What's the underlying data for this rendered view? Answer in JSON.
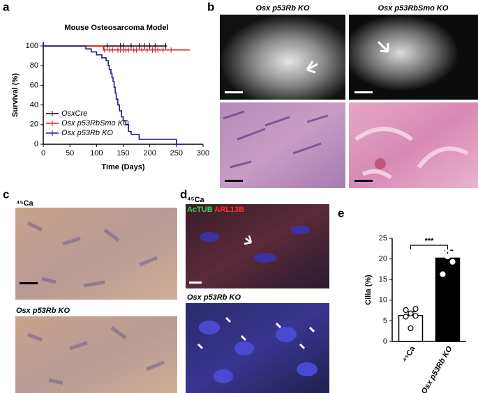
{
  "panel_labels": [
    "a",
    "b",
    "c",
    "d",
    "e"
  ],
  "figure_b": {
    "columns": [
      "Osx p53Rb KO",
      "Osx p53RbSmo KO"
    ]
  },
  "figure_c": {
    "images": [
      "⁴⁵Ca",
      "Osx p53Rb KO"
    ]
  },
  "figure_d": {
    "images": [
      "⁴⁵Ca",
      "Osx p53Rb KO"
    ],
    "stains": [
      "AcTUB",
      "ARL13B"
    ]
  },
  "chart_data": [
    {
      "type": "line",
      "title": "Mouse Osteosarcoma Model",
      "x_label": "Time (Days)",
      "y_label": "Survival (%)",
      "xlim": [
        0,
        300
      ],
      "xticks": [
        0,
        50,
        100,
        150,
        200,
        250,
        300
      ],
      "ylim": [
        0,
        100
      ],
      "yticks": [
        0,
        20,
        40,
        60,
        80,
        100
      ],
      "legend": "lower left",
      "series": [
        {
          "name": "OsxCre",
          "color": "#000000",
          "x": [
            0,
            232
          ],
          "values": [
            100,
            100
          ],
          "censored": [
            120,
            145,
            150,
            165,
            180,
            190,
            200,
            210,
            230
          ]
        },
        {
          "name": "Osx p53RbSmo KO",
          "color": "#e3191c",
          "x": [
            0,
            113,
            113,
            275
          ],
          "values": [
            100,
            100,
            96,
            96
          ],
          "censored": [
            115,
            125,
            130,
            140,
            145,
            150,
            155,
            160,
            170,
            175,
            185,
            195,
            205,
            210,
            215,
            225,
            240
          ]
        },
        {
          "name": "Osx p53Rb KO",
          "color": "#1b1b8a",
          "x": [
            0,
            80,
            80,
            90,
            90,
            100,
            100,
            110,
            110,
            118,
            118,
            122,
            122,
            124,
            124,
            127,
            127,
            129,
            129,
            131,
            131,
            133,
            133,
            135,
            135,
            137,
            137,
            140,
            140,
            143,
            143,
            147,
            147,
            150,
            150,
            155,
            155,
            160,
            160,
            165,
            165,
            180,
            180,
            250,
            250,
            265
          ],
          "values": [
            100,
            100,
            97,
            97,
            94,
            94,
            91,
            91,
            88,
            88,
            85,
            85,
            80,
            80,
            76,
            76,
            72,
            72,
            68,
            68,
            64,
            64,
            58,
            58,
            52,
            52,
            46,
            46,
            40,
            40,
            34,
            34,
            28,
            28,
            24,
            24,
            20,
            20,
            13,
            13,
            10,
            10,
            5,
            5,
            0,
            0
          ],
          "censored": []
        }
      ]
    },
    {
      "type": "bar",
      "y_label": "Cilia (%)",
      "categories": [
        "⁴⁵Ca",
        "Osx p53Rb KO"
      ],
      "values": [
        6.3,
        20.2
      ],
      "errors": [
        0.9,
        1.9
      ],
      "colors": [
        "#ffffff",
        "#000000"
      ],
      "points": [
        [
          7.6,
          6.8,
          6.2,
          6.0,
          3.2,
          7.9
        ],
        [
          22.6,
          20.6,
          19.3,
          16.3,
          22.4
        ]
      ],
      "significance": "***",
      "ylim": [
        0,
        25
      ],
      "yticks": [
        0,
        5,
        10,
        15,
        20,
        25
      ]
    }
  ]
}
